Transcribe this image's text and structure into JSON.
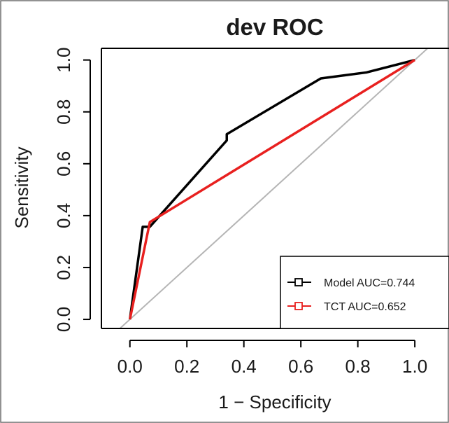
{
  "chart_data": {
    "type": "line",
    "title": "dev ROC",
    "xlabel": "1 − Specificity",
    "ylabel": "Sensitivity",
    "xlim": [
      -0.1,
      1.12
    ],
    "ylim": [
      -0.035,
      1.045
    ],
    "xticks": [
      0.0,
      0.2,
      0.4,
      0.6,
      0.8,
      1.0
    ],
    "yticks": [
      0.0,
      0.2,
      0.4,
      0.6,
      0.8,
      1.0
    ],
    "xtick_labels": [
      "0.0",
      "0.2",
      "0.4",
      "0.6",
      "0.8",
      "1.0"
    ],
    "ytick_labels": [
      "0.0",
      "0.2",
      "0.4",
      "0.6",
      "0.8",
      "1.0"
    ],
    "grid": false,
    "legend_position": "bottom-right",
    "series": [
      {
        "name": "Model AUC=0.744",
        "color": "#000000",
        "marker": "open-square",
        "x": [
          0.0,
          0.045,
          0.07,
          0.34,
          0.34,
          0.67,
          0.83,
          1.0
        ],
        "y": [
          0.0,
          0.357,
          0.357,
          0.69,
          0.714,
          0.929,
          0.952,
          1.0
        ]
      },
      {
        "name": "TCT AUC=0.652",
        "color": "#e8201f",
        "marker": "open-square",
        "x": [
          0.0,
          0.07,
          1.0
        ],
        "y": [
          0.0,
          0.375,
          1.0
        ]
      }
    ],
    "reference_line": {
      "color": "#b5b5b5",
      "x": [
        -0.1,
        1.12
      ],
      "y": [
        -0.1,
        1.12
      ]
    }
  }
}
